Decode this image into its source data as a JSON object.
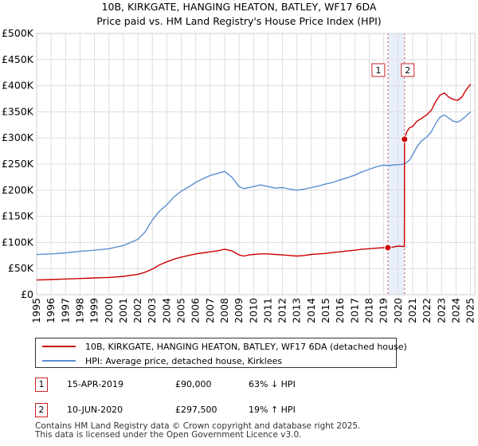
{
  "chart_data": {
    "type": "line",
    "title": "10B, KIRKGATE, HANGING HEATON, BATLEY, WF17 6DA",
    "subtitle": "Price paid vs. HM Land Registry's House Price Index (HPI)",
    "xlabel": "",
    "ylabel": "",
    "xlim": [
      1995,
      2025.3
    ],
    "ylim": [
      0,
      500000
    ],
    "x_ticks": [
      1995,
      1996,
      1997,
      1998,
      1999,
      2000,
      2001,
      2002,
      2003,
      2004,
      2005,
      2006,
      2007,
      2008,
      2009,
      2010,
      2011,
      2012,
      2013,
      2014,
      2015,
      2016,
      2017,
      2018,
      2019,
      2020,
      2021,
      2022,
      2023,
      2024,
      2025
    ],
    "x_tick_labels": [
      "1995",
      "1996",
      "1997",
      "1998",
      "1999",
      "2000",
      "2001",
      "2002",
      "2003",
      "2004",
      "2005",
      "2006",
      "2007",
      "2008",
      "2009",
      "2010",
      "2011",
      "2012",
      "2013",
      "2014",
      "2015",
      "2016",
      "2017",
      "2018",
      "2019",
      "2020",
      "2021",
      "2022",
      "2023",
      "2024",
      "2025"
    ],
    "y_ticks": [
      0,
      50000,
      100000,
      150000,
      200000,
      250000,
      300000,
      350000,
      400000,
      450000,
      500000
    ],
    "y_tick_labels": [
      "£0",
      "£50K",
      "£100K",
      "£150K",
      "£200K",
      "£250K",
      "£300K",
      "£350K",
      "£400K",
      "£450K",
      "£500K"
    ],
    "grid": true,
    "highlight_band": [
      2019.29,
      2020.44
    ],
    "series": [
      {
        "name": "10B, KIRKGATE, HANGING HEATON, BATLEY, WF17 6DA (detached house)",
        "color": "#cc0000",
        "x": [
          1995,
          1996,
          1997,
          1998,
          1999,
          2000,
          2001,
          2002,
          2002.5,
          2003,
          2003.5,
          2004,
          2004.5,
          2005,
          2005.5,
          2006,
          2006.5,
          2007,
          2007.5,
          2008,
          2008.5,
          2009,
          2009.3,
          2009.7,
          2010,
          2010.5,
          2011,
          2011.5,
          2012,
          2012.5,
          2013,
          2013.5,
          2014,
          2014.5,
          2015,
          2015.5,
          2016,
          2016.5,
          2017,
          2017.5,
          2018,
          2018.5,
          2019,
          2019.29,
          2019.6,
          2020,
          2020.43,
          2020.44,
          2020.6,
          2020.8,
          2021,
          2021.3,
          2021.6,
          2022,
          2022.3,
          2022.6,
          2022.9,
          2023.2,
          2023.5,
          2023.8,
          2024.1,
          2024.4,
          2024.7,
          2025
        ],
        "y": [
          28000,
          29000,
          30000,
          31000,
          32000,
          33000,
          35000,
          39000,
          43000,
          49000,
          57000,
          63000,
          68000,
          72000,
          75000,
          78000,
          80000,
          82000,
          84000,
          87000,
          84000,
          76000,
          74000,
          76000,
          77000,
          78000,
          78000,
          77000,
          76000,
          75000,
          74000,
          75000,
          77000,
          78000,
          79000,
          81000,
          82000,
          84000,
          85000,
          87000,
          88000,
          89000,
          90000,
          90000,
          91000,
          93000,
          92000,
          297500,
          312000,
          320000,
          322000,
          332000,
          337000,
          345000,
          353000,
          370000,
          382000,
          386000,
          378000,
          374000,
          372000,
          378000,
          392000,
          403000
        ]
      },
      {
        "name": "HPI: Average price, detached house, Kirklees",
        "color": "#5b8fd0",
        "x": [
          1995,
          1996,
          1997,
          1998,
          1999,
          2000,
          2001,
          2002,
          2002.5,
          2003,
          2003.5,
          2004,
          2004.5,
          2005,
          2005.5,
          2006,
          2006.5,
          2007,
          2007.5,
          2008,
          2008.5,
          2009,
          2009.3,
          2009.7,
          2010,
          2010.5,
          2011,
          2011.5,
          2012,
          2012.5,
          2013,
          2013.5,
          2014,
          2014.5,
          2015,
          2015.5,
          2016,
          2016.5,
          2017,
          2017.5,
          2018,
          2018.5,
          2019,
          2019.29,
          2019.6,
          2020,
          2020.44,
          2020.8,
          2021,
          2021.3,
          2021.6,
          2022,
          2022.3,
          2022.6,
          2022.9,
          2023.2,
          2023.5,
          2023.8,
          2024.1,
          2024.4,
          2024.7,
          2025
        ],
        "y": [
          77000,
          78000,
          80000,
          83000,
          85000,
          88000,
          94000,
          106000,
          120000,
          143000,
          160000,
          172000,
          187000,
          198000,
          206000,
          215000,
          222000,
          228000,
          232000,
          236000,
          225000,
          207000,
          203000,
          205000,
          207000,
          210000,
          207000,
          204000,
          205000,
          202000,
          200000,
          202000,
          205000,
          208000,
          212000,
          215000,
          220000,
          224000,
          229000,
          235000,
          240000,
          245000,
          248000,
          247000,
          248000,
          249000,
          250000,
          258000,
          268000,
          283000,
          294000,
          302000,
          312000,
          328000,
          340000,
          344000,
          338000,
          332000,
          330000,
          335000,
          342000,
          350000
        ]
      }
    ],
    "sales": [
      {
        "x": 2019.29,
        "y": 90000,
        "label": "1"
      },
      {
        "x": 2020.44,
        "y": 297500,
        "label": "2"
      }
    ]
  },
  "legend": {
    "property_label": "10B, KIRKGATE, HANGING HEATON, BATLEY, WF17 6DA (detached house)",
    "hpi_label": "HPI: Average price, detached house, Kirklees"
  },
  "sales_table": [
    {
      "num": "1",
      "date": "15-APR-2019",
      "price": "£90,000",
      "hpi": "63% ↓ HPI"
    },
    {
      "num": "2",
      "date": "10-JUN-2020",
      "price": "£297,500",
      "hpi": "19% ↑ HPI"
    }
  ],
  "footer": {
    "line1": "Contains HM Land Registry data © Crown copyright and database right 2025.",
    "line2": "This data is licensed under the Open Government Licence v3.0."
  },
  "colors": {
    "property": "#cc0000",
    "hpi": "#5b8fd0",
    "band": "#e8eefb",
    "marker_border": "#cc2222"
  }
}
